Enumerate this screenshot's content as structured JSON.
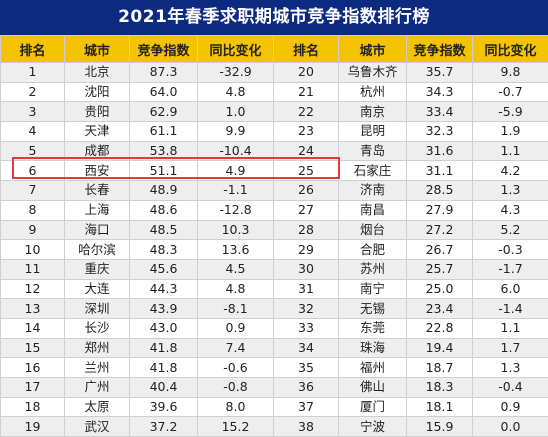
{
  "title": "2021年春季求职期城市竞争指数排行榜",
  "headers": [
    "排名",
    "城市",
    "竞争指数",
    "同比变化",
    "排名",
    "城市",
    "竞争指数",
    "同比变化"
  ],
  "rows": [
    [
      "1",
      "北京",
      "87.3",
      "-32.9",
      "20",
      "乌鲁木齐",
      "35.7",
      "9.8"
    ],
    [
      "2",
      "沈阳",
      "64.0",
      "4.8",
      "21",
      "杭州",
      "34.3",
      "-0.7"
    ],
    [
      "3",
      "贵阳",
      "62.9",
      "1.0",
      "22",
      "南京",
      "33.4",
      "-5.9"
    ],
    [
      "4",
      "天津",
      "61.1",
      "9.9",
      "23",
      "昆明",
      "32.3",
      "1.9"
    ],
    [
      "5",
      "成都",
      "53.8",
      "-10.4",
      "24",
      "青岛",
      "31.6",
      "1.1"
    ],
    [
      "6",
      "西安",
      "51.1",
      "4.9",
      "25",
      "石家庄",
      "31.1",
      "4.2"
    ],
    [
      "7",
      "长春",
      "48.9",
      "-1.1",
      "26",
      "济南",
      "28.5",
      "1.3"
    ],
    [
      "8",
      "上海",
      "48.6",
      "-12.8",
      "27",
      "南昌",
      "27.9",
      "4.3"
    ],
    [
      "9",
      "海口",
      "48.5",
      "10.3",
      "28",
      "烟台",
      "27.2",
      "5.2"
    ],
    [
      "10",
      "哈尔滨",
      "48.3",
      "13.6",
      "29",
      "合肥",
      "26.7",
      "-0.3"
    ],
    [
      "11",
      "重庆",
      "45.6",
      "4.5",
      "30",
      "苏州",
      "25.7",
      "-1.7"
    ],
    [
      "12",
      "大连",
      "44.3",
      "4.8",
      "31",
      "南宁",
      "25.0",
      "6.0"
    ],
    [
      "13",
      "深圳",
      "43.9",
      "-8.1",
      "32",
      "无锡",
      "23.4",
      "-1.4"
    ],
    [
      "14",
      "长沙",
      "43.0",
      "0.9",
      "33",
      "东莞",
      "22.8",
      "1.1"
    ],
    [
      "15",
      "郑州",
      "41.8",
      "7.4",
      "34",
      "珠海",
      "19.4",
      "1.7"
    ],
    [
      "16",
      "兰州",
      "41.8",
      "-0.6",
      "35",
      "福州",
      "18.7",
      "1.3"
    ],
    [
      "17",
      "广州",
      "40.4",
      "-0.8",
      "36",
      "佛山",
      "18.3",
      "-0.4"
    ],
    [
      "18",
      "太原",
      "39.6",
      "8.0",
      "37",
      "厦门",
      "18.1",
      "0.9"
    ],
    [
      "19",
      "武汉",
      "37.2",
      "15.2",
      "38",
      "宁波",
      "15.9",
      "0.0"
    ]
  ],
  "highlighted_row": "6",
  "colors": {
    "title_bg": "#0c2a80",
    "header_bg": "#f5c400",
    "stripe": "#eeeeee",
    "highlight_border": "#e53935"
  }
}
